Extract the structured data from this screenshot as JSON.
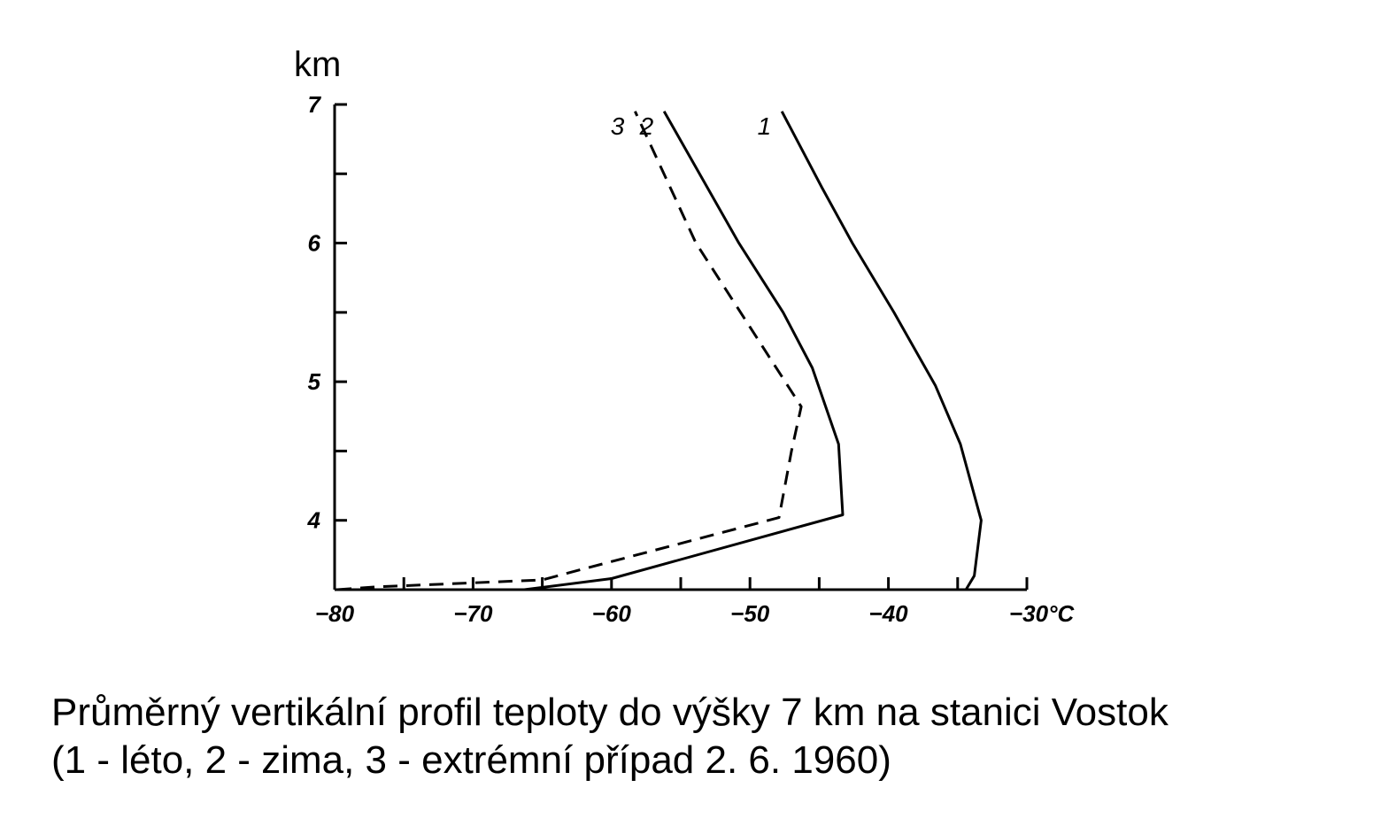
{
  "chart_data": {
    "type": "line",
    "ylabel": "km",
    "xlim": [
      -80,
      -30
    ],
    "ylim": [
      3.5,
      7
    ],
    "x_ticks": [
      -80,
      -75,
      -70,
      -65,
      -60,
      -55,
      -50,
      -45,
      -40,
      -35,
      -30
    ],
    "x_tick_labels": [
      "-80",
      "",
      "-70",
      "",
      "-60",
      "",
      "-50",
      "",
      "-40",
      "",
      "-30°C"
    ],
    "y_ticks": [
      3.5,
      4,
      4.5,
      5,
      5.5,
      6,
      6.5,
      7
    ],
    "y_tick_labels": [
      "",
      "4",
      "",
      "5",
      "",
      "6",
      "",
      "7"
    ],
    "grid": false,
    "legend": "none",
    "series": [
      {
        "name": "1",
        "style": "solid",
        "points": [
          [
            -34.4,
            3.5
          ],
          [
            -33.8,
            3.6
          ],
          [
            -33.3,
            4.0
          ],
          [
            -34.8,
            4.55
          ],
          [
            -36.6,
            4.97
          ],
          [
            -39.6,
            5.5
          ],
          [
            -42.6,
            6.0
          ],
          [
            -44.8,
            6.4
          ],
          [
            -47.7,
            6.95
          ]
        ]
      },
      {
        "name": "2",
        "style": "solid",
        "points": [
          [
            -66.3,
            3.5
          ],
          [
            -60.0,
            3.58
          ],
          [
            -43.3,
            4.04
          ],
          [
            -43.6,
            4.55
          ],
          [
            -45.5,
            5.1
          ],
          [
            -47.6,
            5.5
          ],
          [
            -50.8,
            6.0
          ],
          [
            -56.2,
            6.95
          ]
        ]
      },
      {
        "name": "3",
        "style": "dashed",
        "points": [
          [
            -79.8,
            3.5
          ],
          [
            -77.0,
            3.52
          ],
          [
            -65.0,
            3.57
          ],
          [
            -62.0,
            3.65
          ],
          [
            -47.9,
            4.02
          ],
          [
            -47.0,
            4.5
          ],
          [
            -46.3,
            4.82
          ],
          [
            -53.9,
            6.0
          ],
          [
            -58.3,
            6.95
          ]
        ]
      }
    ]
  },
  "caption": {
    "line1": "Průměrný vertikální profil teploty do výšky 7 km na stanici Vostok",
    "line2": "(1 - léto, 2 - zima, 3 - extrémní případ 2. 6. 1960)"
  }
}
